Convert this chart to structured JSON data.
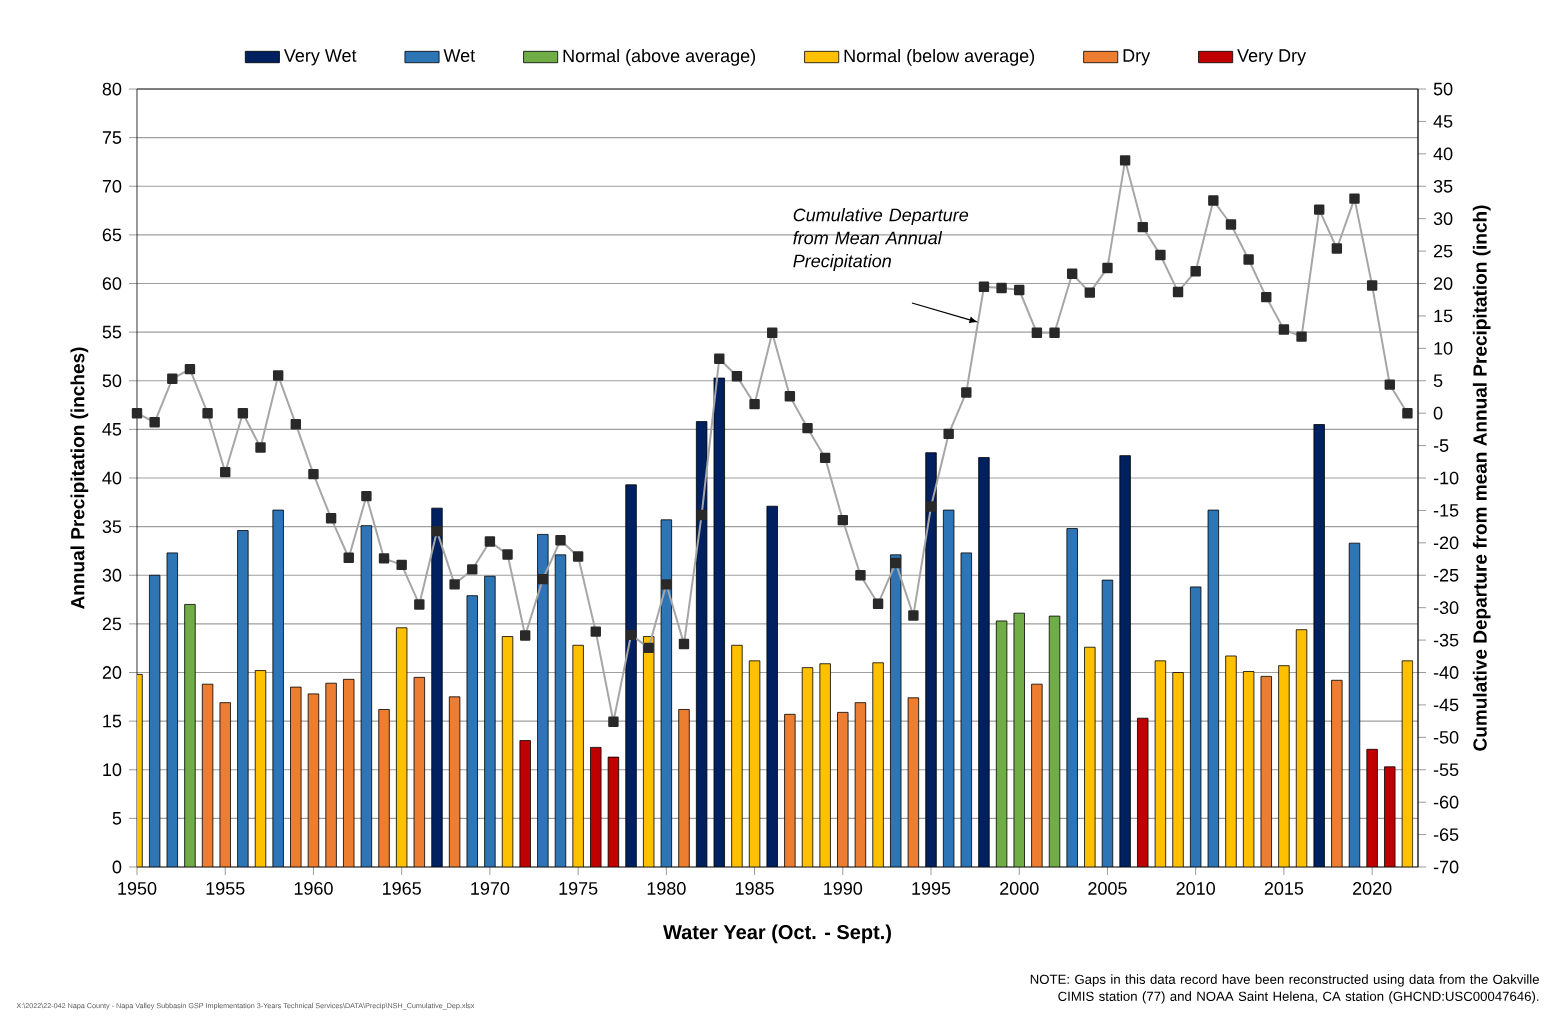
{
  "chart_data": {
    "type": "bar",
    "xlabel": "Water Year (Oct. - Sept.)",
    "ylabel": "Annual Precipitation (inches)",
    "y2label": "Cumulative Departure from mean Annual Precipitation (inch)",
    "xlim": [
      1950,
      2022.6
    ],
    "xticks": [
      1950,
      1955,
      1960,
      1965,
      1970,
      1975,
      1980,
      1985,
      1990,
      1995,
      2000,
      2005,
      2010,
      2015,
      2020
    ],
    "ylim": [
      0,
      80
    ],
    "yticks": [
      0,
      5,
      10,
      15,
      20,
      25,
      30,
      35,
      40,
      45,
      50,
      55,
      60,
      65,
      70,
      75,
      80
    ],
    "y2lim": [
      -70,
      50
    ],
    "y2ticks": [
      -70,
      -65,
      -60,
      -55,
      -50,
      -45,
      -40,
      -35,
      -30,
      -25,
      -20,
      -15,
      -10,
      -5,
      0,
      5,
      10,
      15,
      20,
      25,
      30,
      35,
      40,
      45,
      50
    ],
    "grid": "y",
    "legend": "top",
    "series": [
      {
        "name": "Very Wet",
        "color": "#002060",
        "x": [
          1967,
          1978,
          1982,
          1983,
          1986,
          1995,
          1998,
          2006,
          2017
        ],
        "values": [
          36.9,
          39.3,
          45.8,
          50.3,
          37.1,
          42.6,
          42.1,
          42.3,
          45.5
        ]
      },
      {
        "name": "Wet",
        "color": "#2e75b6",
        "x": [
          1951,
          1952,
          1956,
          1958,
          1963,
          1969,
          1970,
          1973,
          1974,
          1980,
          1993,
          1996,
          1997,
          2003,
          2005,
          2010,
          2011,
          2019
        ],
        "values": [
          30.0,
          32.3,
          34.6,
          36.7,
          35.1,
          27.9,
          29.9,
          34.2,
          32.1,
          35.7,
          32.1,
          36.7,
          32.3,
          34.8,
          29.5,
          28.8,
          36.7,
          33.3
        ]
      },
      {
        "name": "Normal (above average)",
        "color": "#70ad47",
        "x": [
          1953,
          1999,
          2000,
          2002
        ],
        "values": [
          27.0,
          25.3,
          26.1,
          25.8
        ]
      },
      {
        "name": "Normal (below average)",
        "color": "#ffc000",
        "x": [
          1950,
          1957,
          1965,
          1971,
          1975,
          1979,
          1984,
          1985,
          1988,
          1989,
          1992,
          2004,
          2008,
          2009,
          2012,
          2013,
          2015,
          2016,
          2022
        ],
        "values": [
          19.8,
          20.2,
          24.6,
          23.7,
          22.8,
          23.7,
          22.8,
          21.2,
          20.5,
          20.9,
          21.0,
          22.6,
          21.2,
          20.0,
          21.7,
          20.1,
          20.7,
          24.4,
          21.2
        ]
      },
      {
        "name": "Dry",
        "color": "#ed7d31",
        "x": [
          1954,
          1955,
          1959,
          1960,
          1961,
          1962,
          1964,
          1966,
          1968,
          1981,
          1987,
          1990,
          1991,
          1994,
          2001,
          2014,
          2018
        ],
        "values": [
          18.8,
          16.9,
          18.5,
          17.8,
          18.9,
          19.3,
          16.2,
          19.5,
          17.5,
          16.2,
          15.7,
          15.9,
          16.9,
          17.4,
          18.8,
          19.6,
          19.2
        ]
      },
      {
        "name": "Very Dry",
        "color": "#c00000",
        "x": [
          1972,
          1976,
          1977,
          2007,
          2020,
          2021
        ],
        "values": [
          13.0,
          12.3,
          11.3,
          15.3,
          12.1,
          10.3
        ]
      },
      {
        "type": "line",
        "axis": "y2",
        "color": "#a6a6a6",
        "marker": "square",
        "x": [
          1950,
          1951,
          1952,
          1953,
          1954,
          1955,
          1956,
          1957,
          1958,
          1959,
          1960,
          1961,
          1962,
          1963,
          1964,
          1965,
          1966,
          1967,
          1968,
          1969,
          1970,
          1971,
          1972,
          1973,
          1974,
          1975,
          1976,
          1977,
          1978,
          1979,
          1980,
          1981,
          1982,
          1983,
          1984,
          1985,
          1986,
          1987,
          1988,
          1989,
          1990,
          1991,
          1992,
          1993,
          1994,
          1995,
          1996,
          1997,
          1998,
          1999,
          2000,
          2001,
          2002,
          2003,
          2004,
          2005,
          2006,
          2007,
          2008,
          2009,
          2010,
          2011,
          2012,
          2013,
          2014,
          2015,
          2016,
          2017,
          2018,
          2019,
          2020,
          2021,
          2022
        ],
        "values": [
          0,
          -1.4,
          5.3,
          6.8,
          0,
          -9.1,
          0,
          -5.3,
          5.8,
          -1.7,
          -9.4,
          -16.2,
          -22.3,
          -12.8,
          -22.4,
          -23.4,
          -29.5,
          -18.2,
          -26.4,
          -24.1,
          -19.8,
          -21.8,
          -34.3,
          -25.6,
          -19.6,
          -22.1,
          -33.7,
          -47.6,
          -34.2,
          -36.2,
          -26.4,
          -35.6,
          -15.7,
          8.4,
          5.7,
          1.4,
          12.4,
          2.6,
          -2.3,
          -6.9,
          -16.5,
          -25.0,
          -29.4,
          -23.1,
          -31.2,
          -14.4,
          -3.2,
          3.2,
          19.5,
          19.3,
          19.0,
          12.4,
          12.4,
          21.5,
          18.6,
          22.4,
          39.0,
          28.7,
          24.4,
          18.7,
          21.9,
          32.8,
          29.1,
          23.7,
          17.9,
          12.9,
          11.8,
          31.4,
          25.4,
          33.1,
          19.7,
          4.4,
          0
        ]
      }
    ],
    "annotations": [
      "*Cumulative Departure from Mean Annual Precipitation*",
      "NOTE: Gaps in this data record have been reconstructed using data from the Oakville CIMIS station (77) and NOAA Saint Helena, CA station (GHCND:USC00047646).",
      "X:\\2022\\22-042 Napa County - Napa Valley Subbasin GSP Implementation 3-Years Technical Services\\DATA\\Precip\\NSH_Cumulative_Dep.xlsx"
    ]
  }
}
